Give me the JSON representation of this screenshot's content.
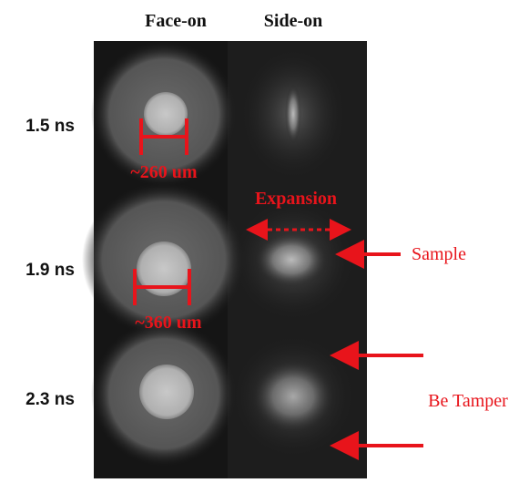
{
  "headers": {
    "columns": [
      "Face-on",
      "Side-on"
    ]
  },
  "rows": [
    {
      "label": "1.5 ns"
    },
    {
      "label": "1.9 ns"
    },
    {
      "label": "2.3 ns"
    }
  ],
  "annotations": {
    "size_1": "~260 um",
    "size_2": "~360 um",
    "expansion": "Expansion",
    "sample": "Sample",
    "tamper": "Be Tamper"
  }
}
